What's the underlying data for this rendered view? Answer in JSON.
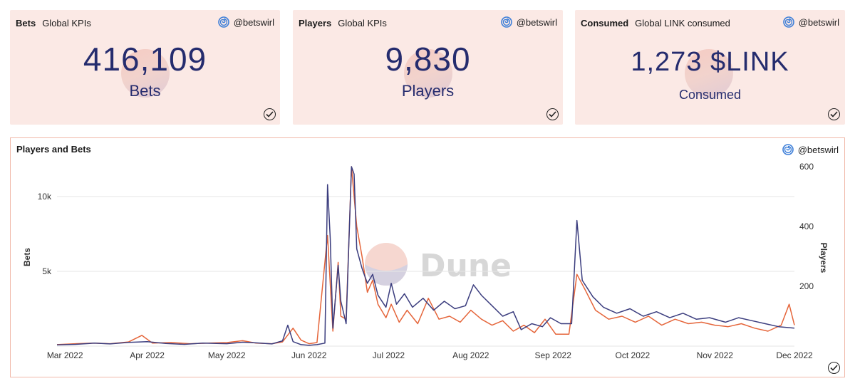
{
  "kpis": [
    {
      "title": "Bets",
      "subtitle": "Global KPIs",
      "author": "@betswirl",
      "value": "416,109",
      "label": "Bets"
    },
    {
      "title": "Players",
      "subtitle": "Global KPIs",
      "author": "@betswirl",
      "value": "9,830",
      "label": "Players"
    },
    {
      "title": "Consumed",
      "subtitle": "Global LINK consumed",
      "author": "@betswirl",
      "value": "1,273 $LINK",
      "label": "Consumed"
    }
  ],
  "colors": {
    "card_bg": "#fbe9e5",
    "value_text": "#252c6e",
    "bets_line": "#3b3d7e",
    "players_line": "#e5653a",
    "chart_border": "#f1b8a9"
  },
  "chart_data": {
    "type": "line",
    "title": "Players and Bets",
    "author": "@betswirl",
    "watermark": "Dune",
    "x_ticks": [
      "Mar 2022",
      "Apr 2022",
      "May 2022",
      "Jun 2022",
      "Jul 2022",
      "Aug 2022",
      "Sep 2022",
      "Oct 2022",
      "Nov 2022",
      "Dec 2022"
    ],
    "x_range": [
      "2022-02-26",
      "2022-12-01"
    ],
    "y_left": {
      "label": "Bets",
      "ticks": [
        "5k",
        "10k"
      ],
      "tick_values": [
        5000,
        10000
      ],
      "range": [
        0,
        12000
      ]
    },
    "y_right": {
      "label": "Players",
      "ticks": [
        "200",
        "400",
        "600"
      ],
      "tick_values": [
        200,
        400,
        600
      ],
      "range": [
        0,
        600
      ]
    },
    "grid": "horizontal",
    "series": [
      {
        "name": "Bets",
        "axis": "left",
        "points": [
          [
            "2022-02-26",
            80
          ],
          [
            "2022-03-05",
            120
          ],
          [
            "2022-03-12",
            200
          ],
          [
            "2022-03-18",
            150
          ],
          [
            "2022-03-25",
            250
          ],
          [
            "2022-04-01",
            300
          ],
          [
            "2022-04-08",
            180
          ],
          [
            "2022-04-15",
            120
          ],
          [
            "2022-04-22",
            200
          ],
          [
            "2022-05-01",
            160
          ],
          [
            "2022-05-07",
            260
          ],
          [
            "2022-05-12",
            220
          ],
          [
            "2022-05-18",
            150
          ],
          [
            "2022-05-22",
            350
          ],
          [
            "2022-05-24",
            1400
          ],
          [
            "2022-05-26",
            300
          ],
          [
            "2022-05-29",
            100
          ],
          [
            "2022-06-01",
            50
          ],
          [
            "2022-06-04",
            100
          ],
          [
            "2022-06-07",
            200
          ],
          [
            "2022-06-08",
            10800
          ],
          [
            "2022-06-09",
            7200
          ],
          [
            "2022-06-10",
            1200
          ],
          [
            "2022-06-12",
            5400
          ],
          [
            "2022-06-13",
            3000
          ],
          [
            "2022-06-15",
            1500
          ],
          [
            "2022-06-17",
            12000
          ],
          [
            "2022-06-18",
            11500
          ],
          [
            "2022-06-19",
            6500
          ],
          [
            "2022-06-21",
            5200
          ],
          [
            "2022-06-23",
            4200
          ],
          [
            "2022-06-25",
            4800
          ],
          [
            "2022-06-27",
            3400
          ],
          [
            "2022-06-30",
            2600
          ],
          [
            "2022-07-02",
            4200
          ],
          [
            "2022-07-04",
            2800
          ],
          [
            "2022-07-07",
            3500
          ],
          [
            "2022-07-10",
            2600
          ],
          [
            "2022-07-14",
            3200
          ],
          [
            "2022-07-18",
            2400
          ],
          [
            "2022-07-22",
            3000
          ],
          [
            "2022-07-26",
            2500
          ],
          [
            "2022-07-30",
            2700
          ],
          [
            "2022-08-02",
            4100
          ],
          [
            "2022-08-05",
            3400
          ],
          [
            "2022-08-09",
            2700
          ],
          [
            "2022-08-13",
            2000
          ],
          [
            "2022-08-17",
            2300
          ],
          [
            "2022-08-20",
            1100
          ],
          [
            "2022-08-24",
            1500
          ],
          [
            "2022-08-28",
            1300
          ],
          [
            "2022-08-31",
            1900
          ],
          [
            "2022-09-04",
            1500
          ],
          [
            "2022-09-08",
            1500
          ],
          [
            "2022-09-10",
            8400
          ],
          [
            "2022-09-12",
            4400
          ],
          [
            "2022-09-16",
            3300
          ],
          [
            "2022-09-20",
            2600
          ],
          [
            "2022-09-25",
            2200
          ],
          [
            "2022-09-30",
            2500
          ],
          [
            "2022-10-05",
            2000
          ],
          [
            "2022-10-10",
            2300
          ],
          [
            "2022-10-15",
            1900
          ],
          [
            "2022-10-20",
            2200
          ],
          [
            "2022-10-25",
            1800
          ],
          [
            "2022-10-30",
            1900
          ],
          [
            "2022-11-05",
            1600
          ],
          [
            "2022-11-10",
            1900
          ],
          [
            "2022-11-15",
            1700
          ],
          [
            "2022-11-20",
            1500
          ],
          [
            "2022-11-25",
            1300
          ],
          [
            "2022-12-01",
            1200
          ]
        ]
      },
      {
        "name": "Players",
        "axis": "right",
        "points": [
          [
            "2022-02-26",
            5
          ],
          [
            "2022-03-05",
            8
          ],
          [
            "2022-03-12",
            10
          ],
          [
            "2022-03-18",
            8
          ],
          [
            "2022-03-25",
            14
          ],
          [
            "2022-03-30",
            36
          ],
          [
            "2022-04-03",
            10
          ],
          [
            "2022-04-10",
            12
          ],
          [
            "2022-04-17",
            8
          ],
          [
            "2022-04-24",
            10
          ],
          [
            "2022-05-01",
            12
          ],
          [
            "2022-05-07",
            18
          ],
          [
            "2022-05-12",
            10
          ],
          [
            "2022-05-18",
            8
          ],
          [
            "2022-05-22",
            14
          ],
          [
            "2022-05-26",
            60
          ],
          [
            "2022-05-29",
            20
          ],
          [
            "2022-06-01",
            8
          ],
          [
            "2022-06-04",
            12
          ],
          [
            "2022-06-08",
            370
          ],
          [
            "2022-06-10",
            50
          ],
          [
            "2022-06-12",
            280
          ],
          [
            "2022-06-13",
            100
          ],
          [
            "2022-06-15",
            90
          ],
          [
            "2022-06-17",
            600
          ],
          [
            "2022-06-19",
            400
          ],
          [
            "2022-06-21",
            300
          ],
          [
            "2022-06-23",
            180
          ],
          [
            "2022-06-25",
            220
          ],
          [
            "2022-06-27",
            140
          ],
          [
            "2022-06-30",
            95
          ],
          [
            "2022-07-02",
            140
          ],
          [
            "2022-07-05",
            80
          ],
          [
            "2022-07-08",
            120
          ],
          [
            "2022-07-12",
            75
          ],
          [
            "2022-07-16",
            160
          ],
          [
            "2022-07-20",
            90
          ],
          [
            "2022-07-24",
            100
          ],
          [
            "2022-07-28",
            80
          ],
          [
            "2022-08-01",
            120
          ],
          [
            "2022-08-05",
            90
          ],
          [
            "2022-08-09",
            70
          ],
          [
            "2022-08-13",
            85
          ],
          [
            "2022-08-17",
            50
          ],
          [
            "2022-08-21",
            70
          ],
          [
            "2022-08-25",
            45
          ],
          [
            "2022-08-29",
            90
          ],
          [
            "2022-09-02",
            40
          ],
          [
            "2022-09-07",
            40
          ],
          [
            "2022-09-10",
            240
          ],
          [
            "2022-09-13",
            190
          ],
          [
            "2022-09-17",
            120
          ],
          [
            "2022-09-22",
            90
          ],
          [
            "2022-09-27",
            100
          ],
          [
            "2022-10-02",
            80
          ],
          [
            "2022-10-07",
            100
          ],
          [
            "2022-10-12",
            70
          ],
          [
            "2022-10-17",
            90
          ],
          [
            "2022-10-22",
            75
          ],
          [
            "2022-10-27",
            80
          ],
          [
            "2022-11-01",
            70
          ],
          [
            "2022-11-06",
            65
          ],
          [
            "2022-11-11",
            75
          ],
          [
            "2022-11-16",
            60
          ],
          [
            "2022-11-21",
            50
          ],
          [
            "2022-11-26",
            70
          ],
          [
            "2022-11-29",
            140
          ],
          [
            "2022-12-01",
            70
          ]
        ]
      }
    ]
  }
}
